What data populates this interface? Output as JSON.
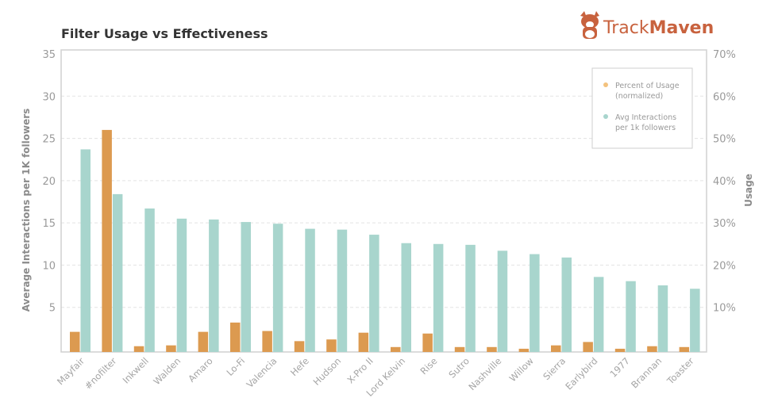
{
  "logo": {
    "part1": "Track",
    "part2": "Maven"
  },
  "colors": {
    "usage": "#dc9a50",
    "interactions": "#a8d5cd",
    "logo": "#c8623e"
  },
  "chart_data": {
    "type": "bar",
    "title": "Filter Usage vs Effectiveness",
    "ylabel": "Average Interactions per 1K followers",
    "y2label": "Usage",
    "ylim": [
      0,
      35
    ],
    "y2lim": [
      0,
      70
    ],
    "yticks": [
      "5",
      "10",
      "15",
      "20",
      "25",
      "30",
      "35"
    ],
    "y2ticks": [
      "10%",
      "20%",
      "30%",
      "40%",
      "50%",
      "60%",
      "70%"
    ],
    "grid": true,
    "legend_position": "top-right",
    "categories": [
      "Mayfair",
      "#nofilter",
      "Inkwell",
      "Walden",
      "Amaro",
      "Lo-Fi",
      "Valencia",
      "Hefe",
      "Hudson",
      "X-Pro II",
      "Lord Kelvin",
      "Rise",
      "Sutro",
      "Nashville",
      "Willow",
      "Sierra",
      "Earlybird",
      "1977",
      "Brannan",
      "Toaster"
    ],
    "series": [
      {
        "name": "Percent of Usage (normalized)",
        "line1": "Percent of Usage",
        "line2": "(normalized)",
        "axis": "right",
        "unit": "%",
        "values": [
          4.2,
          52,
          0.8,
          1.0,
          4.2,
          6.4,
          4.4,
          2.0,
          2.4,
          4.0,
          0.6,
          3.8,
          0.6,
          0.6,
          0.2,
          1.0,
          1.8,
          0.2,
          0.8,
          0.6
        ]
      },
      {
        "name": "Avg Interactions per 1k followers",
        "line1": "Avg Interactions",
        "line2": "per 1k followers",
        "axis": "left",
        "values": [
          23.7,
          18.4,
          16.7,
          15.5,
          15.4,
          15.1,
          14.9,
          14.3,
          14.2,
          13.6,
          12.6,
          12.5,
          12.4,
          11.7,
          11.3,
          10.9,
          8.6,
          8.1,
          7.6,
          7.2
        ]
      }
    ]
  }
}
